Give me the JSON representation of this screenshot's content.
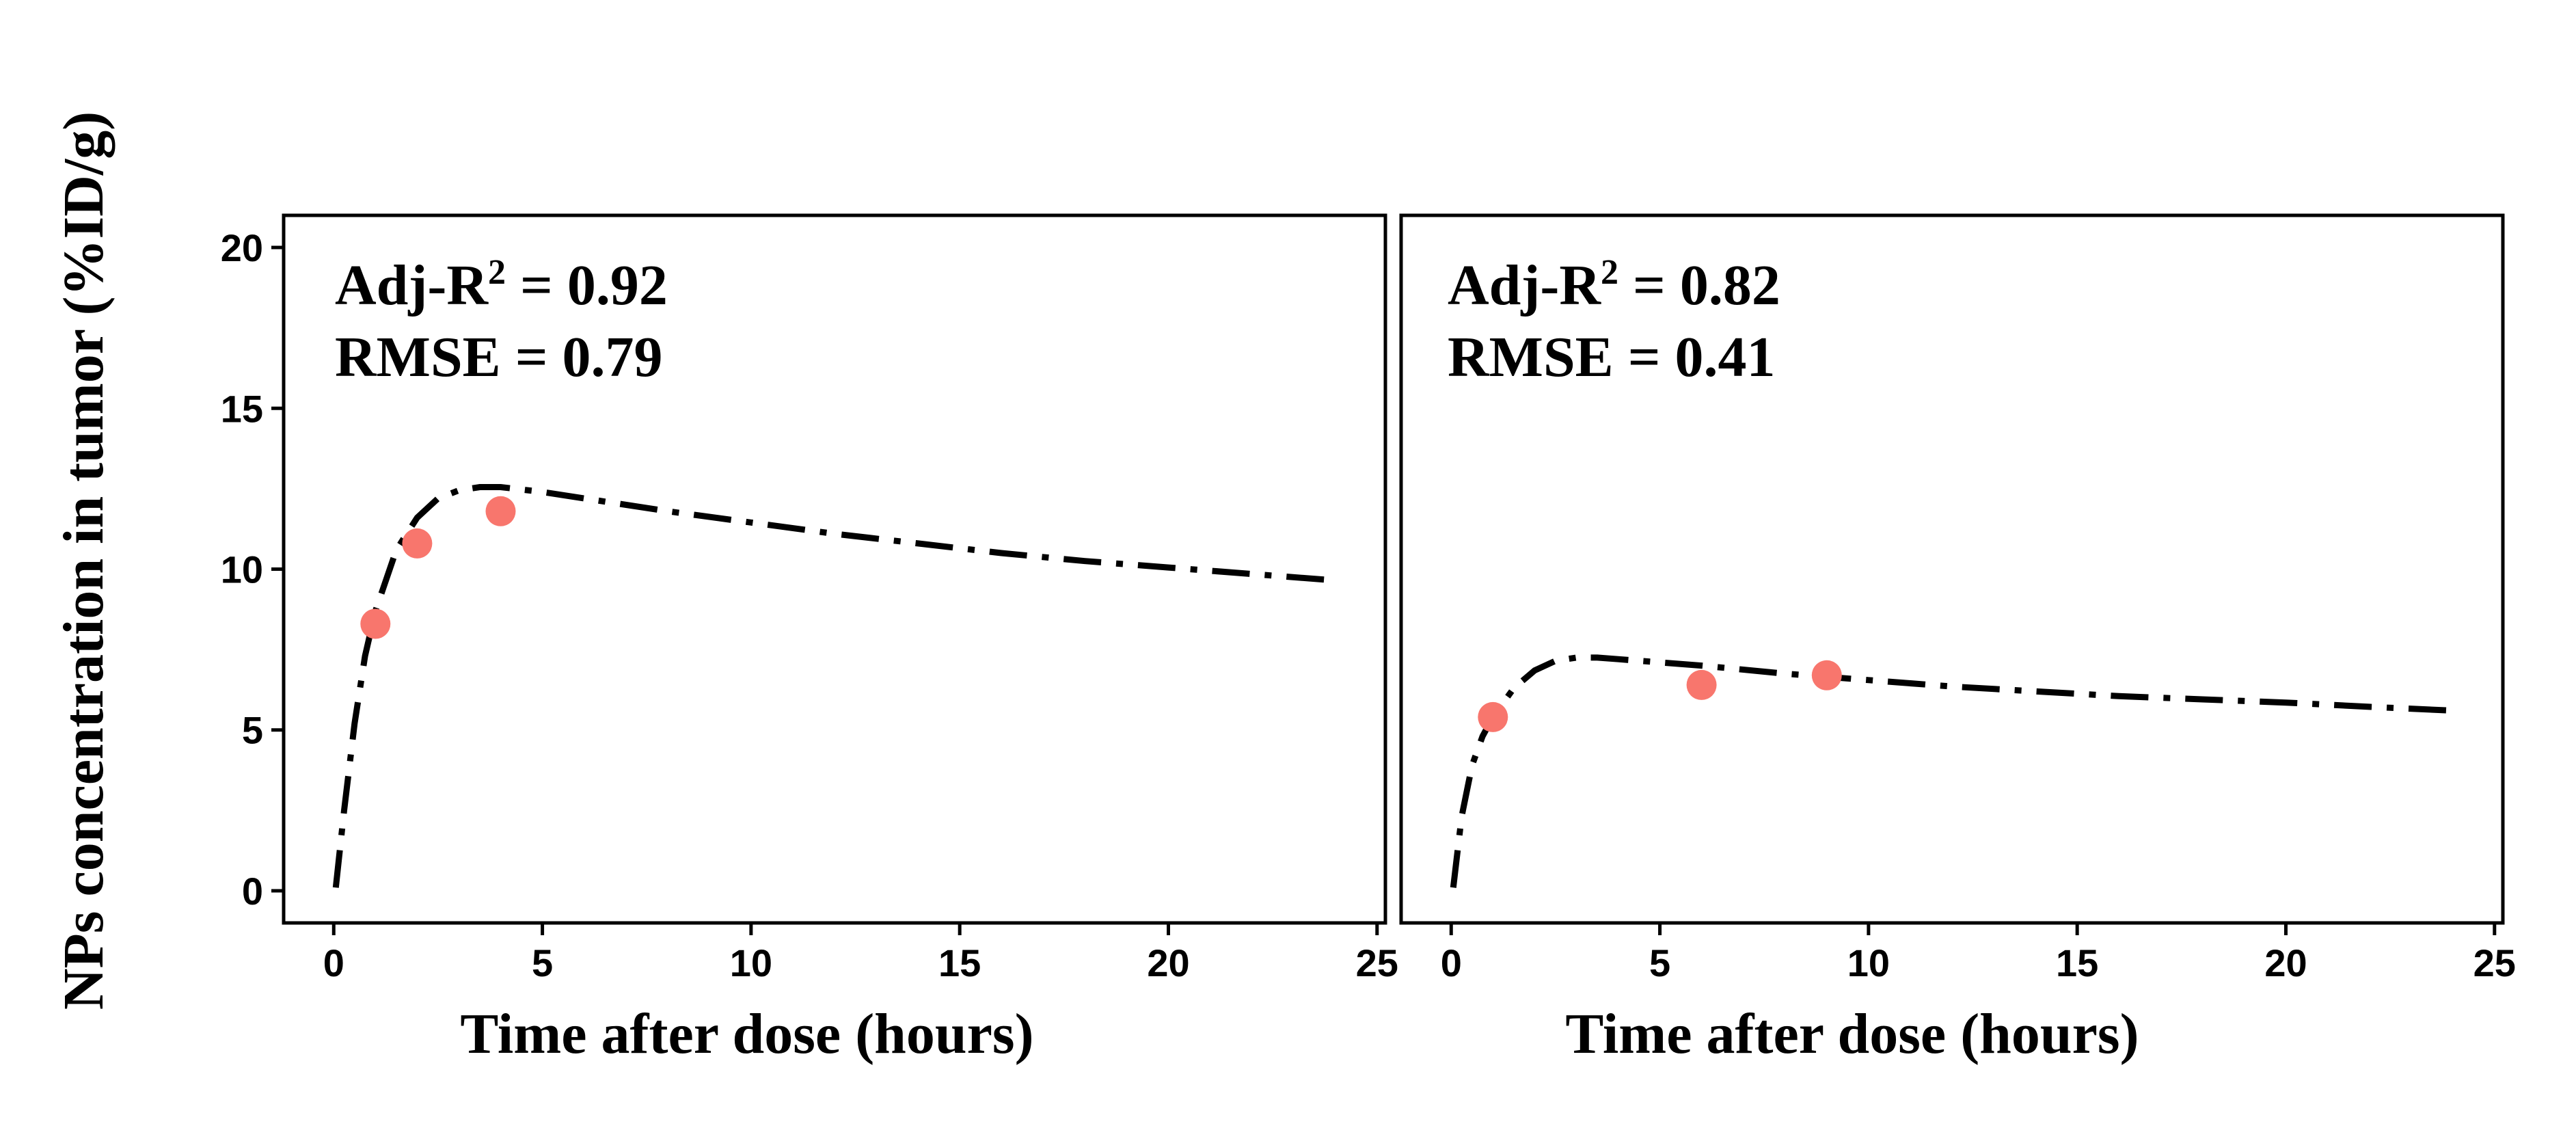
{
  "chart_data": {
    "type": "line",
    "ylabel": "NPs concentration in tumor (%ID/g)",
    "ylim": [
      -1,
      21
    ],
    "yticks": [
      0,
      5,
      10,
      15,
      20
    ],
    "xticks": [
      0,
      5,
      10,
      15,
      20,
      25
    ],
    "point_color": "#f8766d",
    "line_color": "#000000",
    "line_style": "dash-dot",
    "panels": [
      {
        "xlabel": "Time after dose (hours)",
        "xlim": [
          -1.2,
          25.2
        ],
        "annotation_adj": "Adj-R",
        "annotation_sup": "2",
        "annotation_adj_value": " = 0.92",
        "annotation_rmse": "RMSE = 0.79",
        "fit": {
          "x": [
            0.05,
            0.25,
            0.5,
            0.75,
            1,
            1.5,
            2,
            2.5,
            3,
            3.5,
            4,
            5,
            6,
            8,
            10,
            12,
            14,
            16,
            18,
            20,
            22,
            24
          ],
          "y": [
            0.1,
            2.5,
            5.2,
            7.3,
            8.7,
            10.6,
            11.6,
            12.2,
            12.45,
            12.55,
            12.55,
            12.4,
            12.2,
            11.8,
            11.45,
            11.1,
            10.8,
            10.5,
            10.25,
            10.05,
            9.85,
            9.65
          ]
        },
        "points": {
          "x": [
            1,
            2,
            4
          ],
          "y": [
            8.3,
            10.8,
            11.8
          ]
        }
      },
      {
        "xlabel": "Time after dose (hours)",
        "xlim": [
          -1.2,
          25.2
        ],
        "annotation_adj": "Adj-R",
        "annotation_sup": "2",
        "annotation_adj_value": " = 0.82",
        "annotation_rmse": "RMSE = 0.41",
        "fit": {
          "x": [
            0.05,
            0.25,
            0.5,
            0.75,
            1,
            1.5,
            2,
            2.5,
            3,
            3.5,
            4,
            5,
            6,
            8,
            10,
            12,
            14,
            16,
            18,
            20,
            22,
            24
          ],
          "y": [
            0.1,
            2.3,
            3.9,
            4.8,
            5.4,
            6.3,
            6.85,
            7.15,
            7.25,
            7.25,
            7.2,
            7.1,
            7.0,
            6.75,
            6.55,
            6.35,
            6.2,
            6.05,
            5.95,
            5.85,
            5.72,
            5.6
          ]
        },
        "points": {
          "x": [
            1,
            6,
            9
          ],
          "y": [
            5.4,
            6.4,
            6.7
          ]
        }
      }
    ]
  }
}
